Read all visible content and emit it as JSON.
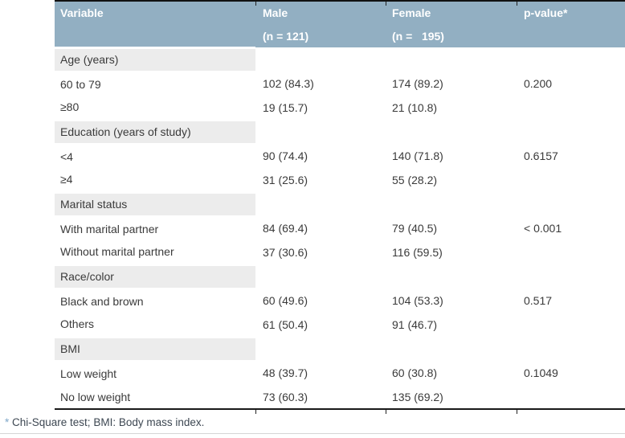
{
  "table": {
    "header": {
      "columns": [
        {
          "label": "Variable",
          "sub": ""
        },
        {
          "label": "Male",
          "sub": "(n = 121)"
        },
        {
          "label": "Female",
          "sub": "(n =   195)"
        },
        {
          "label": "p-value*",
          "sub": ""
        }
      ]
    },
    "rows": [
      {
        "type": "category",
        "variable": "Age (years)",
        "male": "",
        "female": "",
        "p": ""
      },
      {
        "type": "data",
        "variable": "60 to 79",
        "male": "102 (84.3)",
        "female": "174 (89.2)",
        "p": "0.200"
      },
      {
        "type": "data",
        "variable": "≥80",
        "male": "19 (15.7)",
        "female": "21 (10.8)",
        "p": ""
      },
      {
        "type": "category",
        "variable": "Education (years of study)",
        "male": "",
        "female": "",
        "p": ""
      },
      {
        "type": "data",
        "variable": "<4",
        "male": "90 (74.4)",
        "female": "140 (71.8)",
        "p": "0.6157"
      },
      {
        "type": "data",
        "variable": "≥4",
        "male": "31 (25.6)",
        "female": "55 (28.2)",
        "p": ""
      },
      {
        "type": "category",
        "variable": "Marital status",
        "male": "",
        "female": "",
        "p": ""
      },
      {
        "type": "data",
        "variable": "With marital partner",
        "male": "84 (69.4)",
        "female": "79 (40.5)",
        "p": "< 0.001"
      },
      {
        "type": "data",
        "variable": "Without marital partner",
        "male": "37 (30.6)",
        "female": "116 (59.5)",
        "p": ""
      },
      {
        "type": "category",
        "variable": "Race/color",
        "male": "",
        "female": "",
        "p": ""
      },
      {
        "type": "data",
        "variable": "Black and brown",
        "male": "60 (49.6)",
        "female": "104 (53.3)",
        "p": "0.517"
      },
      {
        "type": "data",
        "variable": "Others",
        "male": "61 (50.4)",
        "female": "91 (46.7)",
        "p": ""
      },
      {
        "type": "category",
        "variable": "BMI",
        "male": "",
        "female": "",
        "p": ""
      },
      {
        "type": "data",
        "variable": "Low weight",
        "male": "48 (39.7)",
        "female": "60 (30.8)",
        "p": "0.1049"
      },
      {
        "type": "data",
        "variable": "No low weight",
        "male": "73 (60.3)",
        "female": "135 (69.2)",
        "p": ""
      }
    ],
    "footnote": {
      "marker": "*",
      "text": " Chi-Square test; BMI: Body mass index."
    }
  },
  "colors": {
    "header_bg": "#92afc2",
    "header_text": "#ffffff",
    "category_bg": "#ececec",
    "body_text": "#3a3a3a",
    "top_border": "#111111",
    "bottom_border": "#1a1a1a",
    "footnote_marker": "#7fa8c9",
    "footnote_text": "#3d4752"
  }
}
